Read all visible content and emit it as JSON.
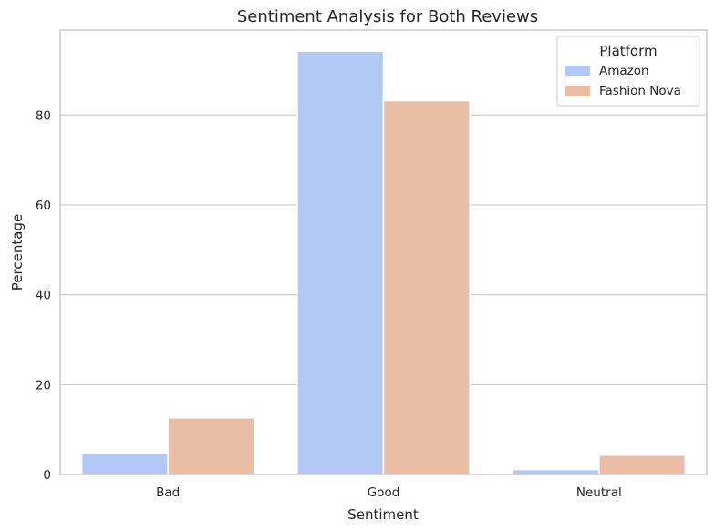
{
  "chart_data": {
    "type": "bar",
    "title": "Sentiment Analysis for Both Reviews",
    "xlabel": "Sentiment",
    "ylabel": "Percentage",
    "categories": [
      "Bad",
      "Good",
      "Neutral"
    ],
    "series": [
      {
        "name": "Amazon",
        "values": [
          4.7,
          94.2,
          1.1
        ],
        "color": "#b3c9f5"
      },
      {
        "name": "Fashion Nova",
        "values": [
          12.6,
          83.2,
          4.3
        ],
        "color": "#ecbda5"
      }
    ],
    "ylim": [
      0,
      98.9
    ],
    "yticks": [
      0,
      20,
      40,
      60,
      80
    ],
    "grid": "horizontal",
    "legend": {
      "title": "Platform",
      "placement": "top-right"
    }
  }
}
